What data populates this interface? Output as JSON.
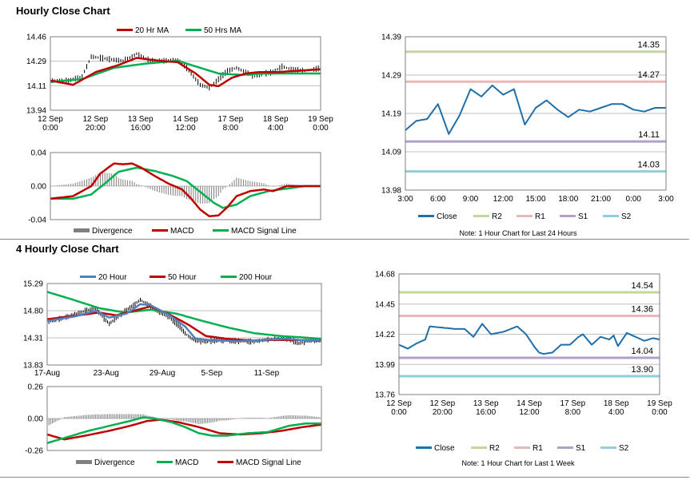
{
  "sections": {
    "hourly_title": "Hourly Close Chart",
    "four_hourly_title": "4 Hourly Close Chart"
  },
  "chart_data": [
    {
      "id": "hourly_price",
      "type": "line",
      "title": "",
      "ylim": [
        13.94,
        14.46
      ],
      "yticks": [
        "14.46",
        "14.29",
        "14.11",
        "13.94"
      ],
      "xticks": [
        "12 Sep\n0:00",
        "12 Sep\n20:00",
        "13 Sep\n16:00",
        "14 Sep\n12:00",
        "17 Sep\n8:00",
        "18 Sep\n4:00",
        "19 Sep\n0:00"
      ],
      "n": 120,
      "legend": [
        "20 Hr MA",
        "50 Hrs MA"
      ],
      "colors": {
        "price": "#000000",
        "ma20": "#c00000",
        "ma50": "#00b050"
      },
      "price_knots": [
        [
          0,
          14.15
        ],
        [
          8,
          14.15
        ],
        [
          14,
          14.18
        ],
        [
          18,
          14.32
        ],
        [
          27,
          14.3
        ],
        [
          32,
          14.29
        ],
        [
          36,
          14.32
        ],
        [
          38,
          14.34
        ],
        [
          44,
          14.29
        ],
        [
          50,
          14.29
        ],
        [
          56,
          14.3
        ],
        [
          60,
          14.24
        ],
        [
          62,
          14.2
        ],
        [
          66,
          14.12
        ],
        [
          70,
          14.1
        ],
        [
          74,
          14.16
        ],
        [
          78,
          14.22
        ],
        [
          82,
          14.24
        ],
        [
          86,
          14.21
        ],
        [
          90,
          14.18
        ],
        [
          94,
          14.2
        ],
        [
          98,
          14.21
        ],
        [
          102,
          14.25
        ],
        [
          106,
          14.23
        ],
        [
          112,
          14.22
        ],
        [
          116,
          14.23
        ],
        [
          119,
          14.24
        ]
      ],
      "ma20_knots": [
        [
          0,
          14.15
        ],
        [
          10,
          14.12
        ],
        [
          20,
          14.21
        ],
        [
          30,
          14.26
        ],
        [
          38,
          14.31
        ],
        [
          48,
          14.29
        ],
        [
          56,
          14.28
        ],
        [
          64,
          14.2
        ],
        [
          70,
          14.12
        ],
        [
          74,
          14.11
        ],
        [
          80,
          14.17
        ],
        [
          86,
          14.2
        ],
        [
          92,
          14.21
        ],
        [
          100,
          14.21
        ],
        [
          110,
          14.22
        ],
        [
          119,
          14.23
        ]
      ],
      "ma50_knots": [
        [
          0,
          14.14
        ],
        [
          14,
          14.16
        ],
        [
          28,
          14.24
        ],
        [
          42,
          14.27
        ],
        [
          56,
          14.29
        ],
        [
          66,
          14.24
        ],
        [
          74,
          14.2
        ],
        [
          84,
          14.19
        ],
        [
          94,
          14.2
        ],
        [
          104,
          14.2
        ],
        [
          119,
          14.2
        ]
      ]
    },
    {
      "id": "hourly_macd",
      "type": "line",
      "ylim": [
        -0.04,
        0.04
      ],
      "yticks": [
        "0.04",
        "0.00",
        "-0.04"
      ],
      "n": 120,
      "legend": [
        "Divergence",
        "MACD",
        "MACD Signal Line"
      ],
      "colors": {
        "divergence": "#7f7f7f",
        "macd": "#c00000",
        "signal": "#00b050"
      },
      "macd_knots": [
        [
          0,
          -0.015
        ],
        [
          10,
          -0.012
        ],
        [
          18,
          0.0
        ],
        [
          22,
          0.015
        ],
        [
          28,
          0.027
        ],
        [
          32,
          0.026
        ],
        [
          36,
          0.027
        ],
        [
          40,
          0.022
        ],
        [
          46,
          0.012
        ],
        [
          52,
          0.003
        ],
        [
          58,
          -0.004
        ],
        [
          62,
          -0.015
        ],
        [
          66,
          -0.028
        ],
        [
          70,
          -0.036
        ],
        [
          74,
          -0.035
        ],
        [
          78,
          -0.025
        ],
        [
          82,
          -0.012
        ],
        [
          88,
          -0.006
        ],
        [
          94,
          -0.004
        ],
        [
          98,
          -0.006
        ],
        [
          104,
          0.0
        ],
        [
          112,
          0.0
        ],
        [
          119,
          0.0
        ]
      ],
      "signal_knots": [
        [
          0,
          -0.015
        ],
        [
          10,
          -0.015
        ],
        [
          18,
          -0.01
        ],
        [
          24,
          0.003
        ],
        [
          30,
          0.017
        ],
        [
          38,
          0.022
        ],
        [
          46,
          0.018
        ],
        [
          54,
          0.012
        ],
        [
          60,
          0.006
        ],
        [
          66,
          -0.007
        ],
        [
          72,
          -0.02
        ],
        [
          76,
          -0.026
        ],
        [
          82,
          -0.022
        ],
        [
          88,
          -0.012
        ],
        [
          96,
          -0.006
        ],
        [
          104,
          -0.003
        ],
        [
          112,
          0.0
        ],
        [
          119,
          0.0
        ]
      ]
    },
    {
      "id": "hourly_levels",
      "type": "line",
      "ylim": [
        13.98,
        14.39
      ],
      "yticks": [
        "14.39",
        "14.29",
        "14.19",
        "14.09",
        "13.98"
      ],
      "x": [
        "3:00",
        "4:00",
        "5:00",
        "6:00",
        "7:00",
        "8:00",
        "9:00",
        "10:00",
        "11:00",
        "12:00",
        "13:00",
        "14:00",
        "15:00",
        "16:00",
        "17:00",
        "18:00",
        "19:00",
        "20:00",
        "21:00",
        "22:00",
        "23:00",
        "0:00",
        "1:00",
        "2:00",
        "3:00"
      ],
      "xticks": [
        "3:00",
        "6:00",
        "9:00",
        "12:00",
        "15:00",
        "18:00",
        "21:00",
        "0:00",
        "3:00"
      ],
      "series": [
        {
          "name": "Close",
          "color": "#1f6fa8",
          "values": [
            14.14,
            14.165,
            14.17,
            14.21,
            14.13,
            14.18,
            14.25,
            14.23,
            14.26,
            14.235,
            14.25,
            14.155,
            14.2,
            14.22,
            14.195,
            14.175,
            14.195,
            14.19,
            14.2,
            14.21,
            14.21,
            14.195,
            14.19,
            14.2,
            14.2
          ]
        },
        {
          "name": "R2",
          "color": "#c4d79b",
          "level": 14.35,
          "label": "14.35"
        },
        {
          "name": "R1",
          "color": "#e6b9b8",
          "level": 14.27,
          "label": "14.27"
        },
        {
          "name": "S1",
          "color": "#b1a0c7",
          "level": 14.11,
          "label": "14.11"
        },
        {
          "name": "S2",
          "color": "#92cddc",
          "level": 14.03,
          "label": "14.03"
        }
      ],
      "note": "Note: 1 Hour Chart for Last 24 Hours"
    },
    {
      "id": "four_hourly_price",
      "type": "line",
      "ylim": [
        13.83,
        15.29
      ],
      "yticks": [
        "15.29",
        "14.80",
        "14.31",
        "13.83"
      ],
      "xticks": [
        "17-Aug",
        "23-Aug",
        "29-Aug",
        "5-Sep",
        "11-Sep"
      ],
      "n": 160,
      "legend": [
        "20 Hour",
        "50 Hour",
        "200 Hour"
      ],
      "colors": {
        "price": "#000000",
        "ma20": "#4f81bd",
        "ma50": "#c00000",
        "ma200": "#00b050"
      },
      "price_knots": [
        [
          0,
          14.6
        ],
        [
          12,
          14.7
        ],
        [
          22,
          14.8
        ],
        [
          28,
          14.85
        ],
        [
          32,
          14.7
        ],
        [
          36,
          14.57
        ],
        [
          42,
          14.72
        ],
        [
          46,
          14.82
        ],
        [
          50,
          14.9
        ],
        [
          54,
          15.0
        ],
        [
          58,
          14.92
        ],
        [
          64,
          14.8
        ],
        [
          70,
          14.7
        ],
        [
          76,
          14.55
        ],
        [
          80,
          14.4
        ],
        [
          84,
          14.3
        ],
        [
          90,
          14.25
        ],
        [
          100,
          14.28
        ],
        [
          110,
          14.26
        ],
        [
          120,
          14.25
        ],
        [
          126,
          14.28
        ],
        [
          132,
          14.3
        ],
        [
          140,
          14.3
        ],
        [
          146,
          14.22
        ],
        [
          150,
          14.25
        ],
        [
          159,
          14.28
        ]
      ],
      "ma20_knots": [
        [
          0,
          14.62
        ],
        [
          16,
          14.7
        ],
        [
          28,
          14.8
        ],
        [
          36,
          14.68
        ],
        [
          46,
          14.75
        ],
        [
          54,
          14.92
        ],
        [
          60,
          14.9
        ],
        [
          70,
          14.74
        ],
        [
          80,
          14.52
        ],
        [
          86,
          14.3
        ],
        [
          96,
          14.27
        ],
        [
          112,
          14.26
        ],
        [
          126,
          14.28
        ],
        [
          138,
          14.3
        ],
        [
          150,
          14.27
        ],
        [
          159,
          14.28
        ]
      ],
      "ma50_knots": [
        [
          0,
          14.65
        ],
        [
          18,
          14.72
        ],
        [
          30,
          14.77
        ],
        [
          40,
          14.72
        ],
        [
          50,
          14.8
        ],
        [
          60,
          14.88
        ],
        [
          70,
          14.75
        ],
        [
          82,
          14.55
        ],
        [
          92,
          14.35
        ],
        [
          104,
          14.3
        ],
        [
          118,
          14.27
        ],
        [
          132,
          14.28
        ],
        [
          144,
          14.28
        ],
        [
          159,
          14.27
        ]
      ],
      "ma200_knots": [
        [
          0,
          15.14
        ],
        [
          15,
          15.0
        ],
        [
          30,
          14.85
        ],
        [
          45,
          14.77
        ],
        [
          60,
          14.82
        ],
        [
          75,
          14.75
        ],
        [
          90,
          14.62
        ],
        [
          105,
          14.5
        ],
        [
          120,
          14.4
        ],
        [
          135,
          14.35
        ],
        [
          150,
          14.32
        ],
        [
          159,
          14.3
        ]
      ]
    },
    {
      "id": "four_hourly_macd",
      "type": "line",
      "ylim": [
        -0.26,
        0.26
      ],
      "yticks": [
        "0.26",
        "0.00",
        "-0.26"
      ],
      "n": 160,
      "legend": [
        "Divergence",
        "MACD",
        "MACD Signal Line"
      ],
      "colors": {
        "divergence": "#7f7f7f",
        "macd": "#00b050",
        "signal": "#c00000"
      },
      "macd_knots": [
        [
          0,
          -0.2
        ],
        [
          12,
          -0.15
        ],
        [
          24,
          -0.1
        ],
        [
          36,
          -0.06
        ],
        [
          48,
          -0.02
        ],
        [
          56,
          0.01
        ],
        [
          62,
          0.0
        ],
        [
          72,
          -0.03
        ],
        [
          80,
          -0.07
        ],
        [
          88,
          -0.12
        ],
        [
          96,
          -0.14
        ],
        [
          104,
          -0.14
        ],
        [
          116,
          -0.12
        ],
        [
          128,
          -0.11
        ],
        [
          140,
          -0.06
        ],
        [
          150,
          -0.04
        ],
        [
          159,
          -0.04
        ]
      ],
      "signal_knots": [
        [
          0,
          -0.13
        ],
        [
          10,
          -0.17
        ],
        [
          22,
          -0.14
        ],
        [
          36,
          -0.1
        ],
        [
          48,
          -0.06
        ],
        [
          58,
          -0.02
        ],
        [
          66,
          -0.01
        ],
        [
          76,
          -0.03
        ],
        [
          88,
          -0.07
        ],
        [
          100,
          -0.12
        ],
        [
          112,
          -0.13
        ],
        [
          124,
          -0.12
        ],
        [
          136,
          -0.1
        ],
        [
          148,
          -0.07
        ],
        [
          159,
          -0.05
        ]
      ]
    },
    {
      "id": "four_hourly_levels",
      "type": "line",
      "ylim": [
        13.76,
        14.68
      ],
      "yticks": [
        "14.68",
        "14.45",
        "14.22",
        "13.99",
        "13.76"
      ],
      "xticks": [
        "12 Sep\n0:00",
        "12 Sep\n20:00",
        "13 Sep\n16:00",
        "14 Sep\n12:00",
        "17 Sep\n8:00",
        "18 Sep\n4:00",
        "19 Sep\n0:00"
      ],
      "n": 120,
      "series": [
        {
          "name": "Close",
          "color": "#1f6fa8",
          "knots": [
            [
              0,
              14.14
            ],
            [
              4,
              14.11
            ],
            [
              8,
              14.15
            ],
            [
              12,
              14.18
            ],
            [
              14,
              14.28
            ],
            [
              20,
              14.27
            ],
            [
              26,
              14.26
            ],
            [
              30,
              14.26
            ],
            [
              34,
              14.2
            ],
            [
              38,
              14.3
            ],
            [
              42,
              14.22
            ],
            [
              48,
              14.24
            ],
            [
              54,
              14.28
            ],
            [
              58,
              14.22
            ],
            [
              62,
              14.12
            ],
            [
              64,
              14.08
            ],
            [
              66,
              14.07
            ],
            [
              70,
              14.08
            ],
            [
              74,
              14.14
            ],
            [
              78,
              14.14
            ],
            [
              82,
              14.2
            ],
            [
              84,
              14.22
            ],
            [
              88,
              14.14
            ],
            [
              92,
              14.2
            ],
            [
              96,
              14.18
            ],
            [
              98,
              14.21
            ],
            [
              100,
              14.13
            ],
            [
              104,
              14.23
            ],
            [
              108,
              14.2
            ],
            [
              112,
              14.17
            ],
            [
              116,
              14.19
            ],
            [
              119,
              14.18
            ]
          ]
        },
        {
          "name": "R2",
          "color": "#c4d79b",
          "level": 14.54,
          "label": "14.54"
        },
        {
          "name": "R1",
          "color": "#e6b9b8",
          "level": 14.36,
          "label": "14.36"
        },
        {
          "name": "S1",
          "color": "#b1a0c7",
          "level": 14.04,
          "label": "14.04"
        },
        {
          "name": "S2",
          "color": "#92cddc",
          "level": 13.9,
          "label": "13.90"
        }
      ],
      "note": "Note: 1 Hour Chart for Last 1 Week"
    }
  ]
}
